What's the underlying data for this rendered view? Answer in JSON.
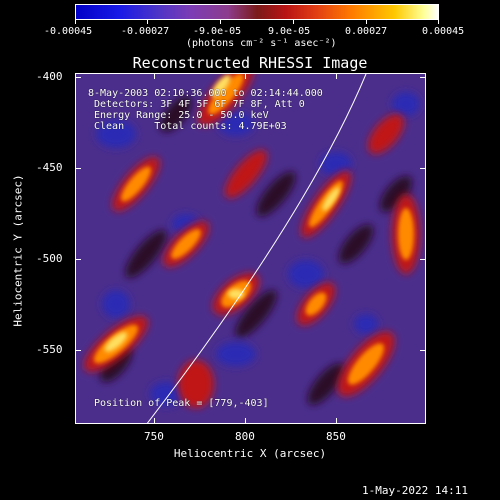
{
  "colorbar": {
    "ticks": [
      "-0.00045",
      "-0.00027",
      "-9.0e-05",
      "9.0e-05",
      "0.00027",
      "0.00045"
    ],
    "units_label": "(photons cm⁻² s⁻¹ asec⁻²)"
  },
  "plot": {
    "title": "Reconstructed RHESSI Image",
    "info": {
      "time_range": "8-May-2003 02:10:36.000 to 02:14:44.000",
      "detectors": "Detectors: 3F 4F 5F 6F 7F 8F, Att 0",
      "energy_range": "Energy Range: 25.0 - 50.0 keV",
      "clean": "Clean     Total counts: 4.79E+03",
      "peak": "Position of Peak = [779,-403]"
    },
    "xlabel": "Heliocentric X (arcsec)",
    "ylabel": "Heliocentric Y (arcsec)",
    "xticks": [
      "750",
      "800",
      "850"
    ],
    "yticks": [
      "-400",
      "-450",
      "-500",
      "-550"
    ]
  },
  "footer": {
    "timestamp": "1-May-2022 14:11"
  }
}
